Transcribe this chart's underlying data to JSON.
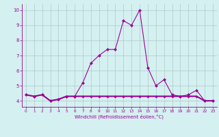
{
  "x": [
    0,
    1,
    2,
    3,
    4,
    5,
    6,
    7,
    8,
    9,
    10,
    11,
    12,
    13,
    14,
    15,
    16,
    17,
    18,
    19,
    20,
    21,
    22,
    23
  ],
  "y_line1": [
    4.4,
    4.3,
    4.4,
    4.0,
    4.1,
    4.3,
    4.3,
    5.2,
    6.5,
    7.0,
    7.4,
    7.4,
    9.3,
    9.0,
    10.0,
    6.2,
    5.0,
    5.4,
    4.4,
    4.3,
    4.4,
    4.7,
    4.0,
    4.0
  ],
  "y_line2": [
    4.4,
    4.3,
    4.4,
    4.0,
    4.1,
    4.3,
    4.3,
    4.3,
    4.3,
    4.3,
    4.3,
    4.3,
    4.3,
    4.3,
    4.3,
    4.3,
    4.3,
    4.3,
    4.3,
    4.3,
    4.3,
    4.3,
    4.0,
    4.0
  ],
  "line_color": "#990099",
  "bg_color": "#d4f0f0",
  "grid_color": "#b0c8c8",
  "xlim_min": -0.5,
  "xlim_max": 23.5,
  "ylim_min": 3.6,
  "ylim_max": 10.4,
  "yticks": [
    4,
    5,
    6,
    7,
    8,
    9,
    10
  ],
  "xticks": [
    0,
    1,
    2,
    3,
    4,
    5,
    6,
    7,
    8,
    9,
    10,
    11,
    12,
    13,
    14,
    15,
    16,
    17,
    18,
    19,
    20,
    21,
    22,
    23
  ],
  "xlabel": "Windchill (Refroidissement éolien,°C)",
  "ylabel_fontsize": 4.5,
  "xlabel_fontsize": 5.0,
  "xtick_fontsize": 4.2,
  "ytick_fontsize": 5.0,
  "line_width": 0.8,
  "marker_size": 2.2
}
